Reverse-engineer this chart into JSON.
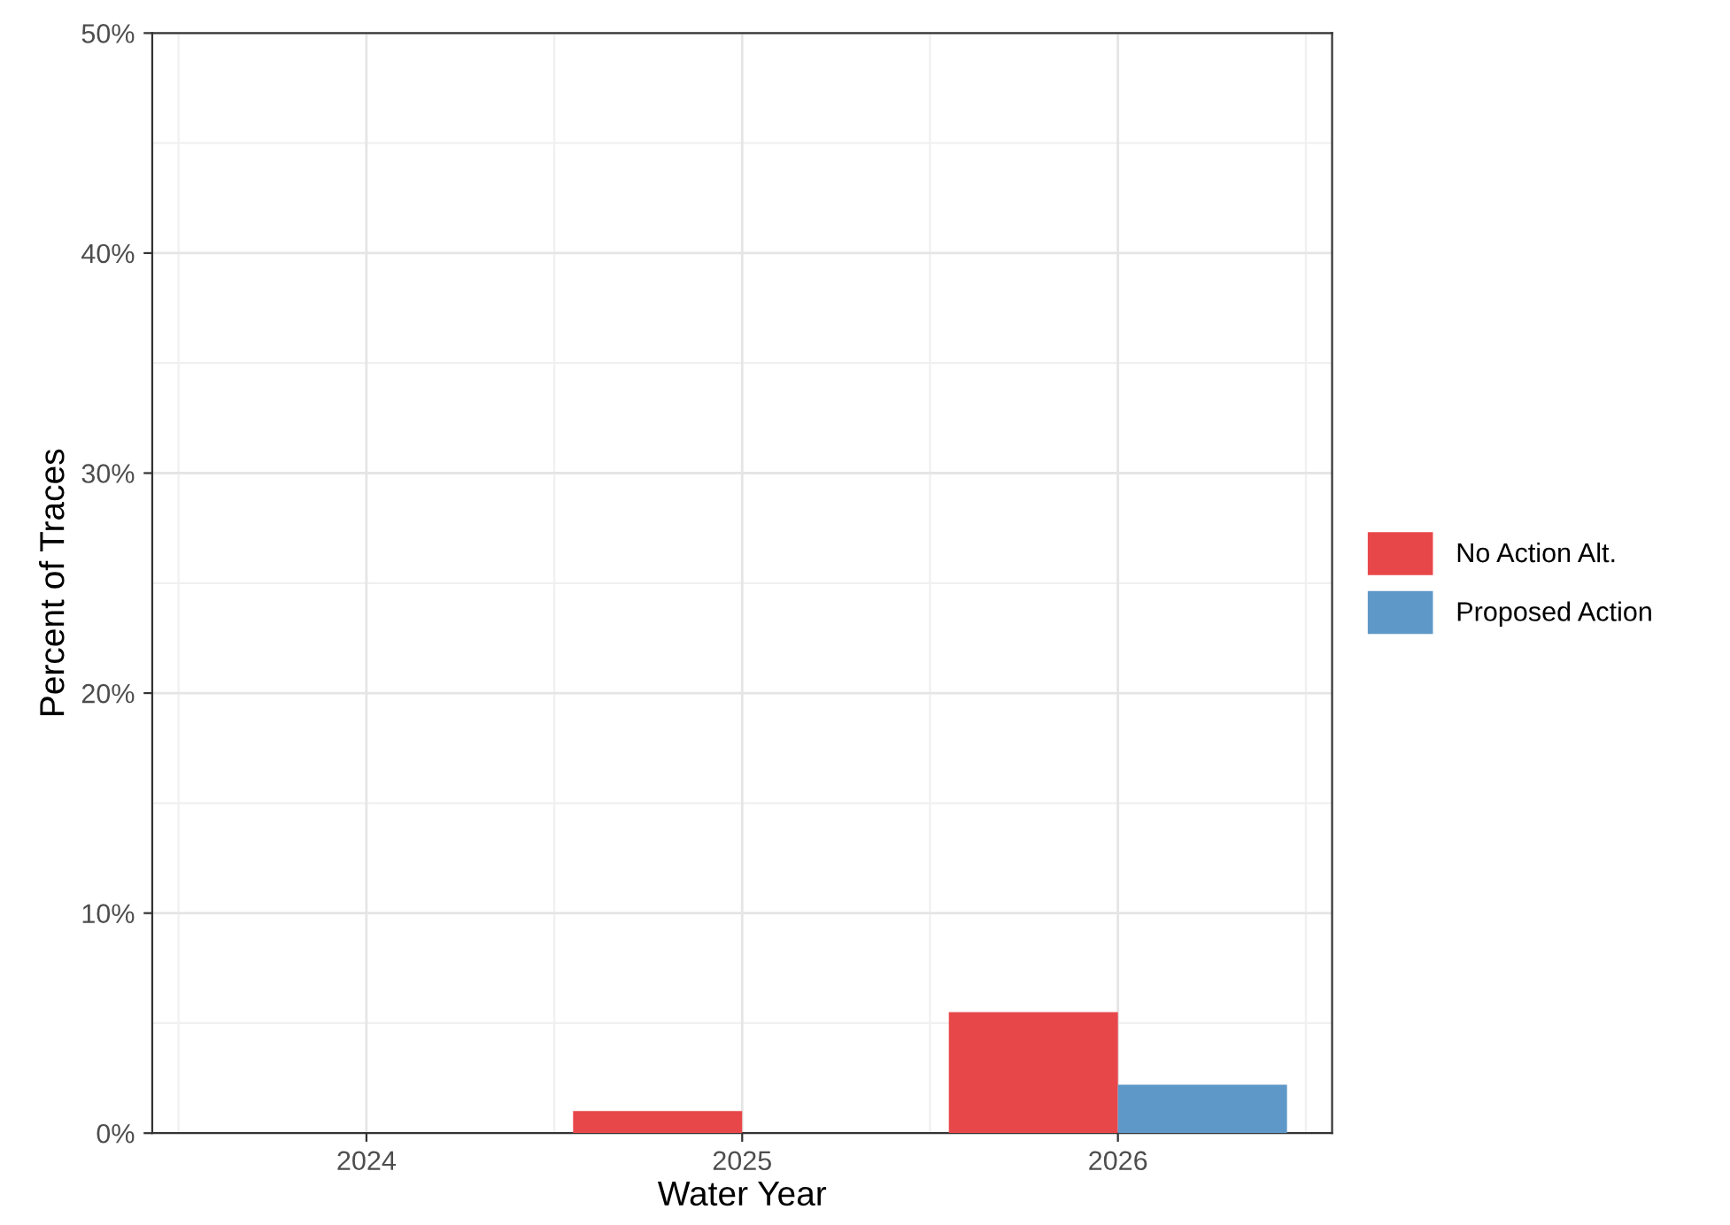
{
  "chart_data": {
    "type": "bar",
    "xlabel": "Water Year",
    "ylabel": "Percent of Traces",
    "x": [
      2024,
      2025,
      2026
    ],
    "series": [
      {
        "name": "No Action Alt.",
        "color": "#e8474a",
        "values": [
          0,
          1.0,
          5.5
        ]
      },
      {
        "name": "Proposed Action",
        "color": "#5e98c8",
        "values": [
          0,
          0,
          2.2
        ]
      }
    ],
    "xlim": [
      2023.43,
      2026.57
    ],
    "xticks": [
      2024,
      2025,
      2026
    ],
    "ylim": [
      0,
      50
    ],
    "yticks": [
      {
        "value": 0,
        "label": "0%"
      },
      {
        "value": 10,
        "label": "10%"
      },
      {
        "value": 20,
        "label": "20%"
      },
      {
        "value": 30,
        "label": "30%"
      },
      {
        "value": 40,
        "label": "40%"
      },
      {
        "value": 50,
        "label": "50%"
      }
    ],
    "grid": true,
    "legend": "right"
  }
}
